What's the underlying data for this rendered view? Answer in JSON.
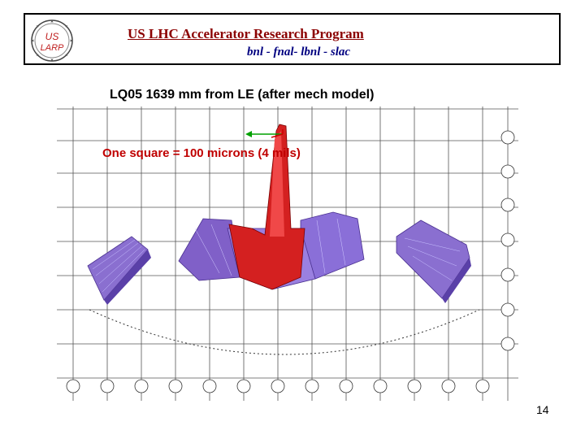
{
  "header": {
    "logo_text_top": "US",
    "logo_text_bottom": "LARP",
    "title": "US LHC Accelerator Research Program",
    "subtitle": "bnl - fnal- lbnl - slac"
  },
  "slide": {
    "caption": "LQ05  1639 mm from LE (after mech model)",
    "scale_note": "One square = 100 microns (4 mils)",
    "page_number": "14"
  },
  "colors": {
    "title": "#8b0000",
    "subtitle": "#000080",
    "scale_note": "#c00000",
    "surface_purple": "#7a58c8",
    "surface_red": "#d42020"
  }
}
